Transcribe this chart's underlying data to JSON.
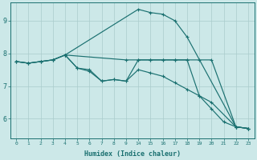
{
  "xlabel": "Humidex (Indice chaleur)",
  "bg_color": "#cce8e8",
  "grid_color_major": "#aacccc",
  "grid_color_minor": "#ddeaea",
  "line_color": "#1a7070",
  "xtick_labels": [
    "0",
    "1",
    "2",
    "3",
    "4",
    "5",
    "6",
    "7",
    "8",
    "9",
    "14",
    "15",
    "16",
    "17",
    "18",
    "19",
    "20",
    "21",
    "22",
    "23"
  ],
  "ylim": [
    5.4,
    9.55
  ],
  "yticks": [
    6,
    7,
    8,
    9
  ],
  "line_A_x": [
    0,
    1,
    2,
    3,
    4,
    14,
    15,
    16,
    17,
    18,
    22,
    23
  ],
  "line_A_y": [
    7.75,
    7.7,
    7.75,
    7.8,
    7.95,
    9.35,
    9.25,
    9.2,
    9.0,
    8.5,
    5.75,
    5.7
  ],
  "line_B_x": [
    0,
    1,
    2,
    3,
    4,
    9,
    14,
    15,
    16,
    17,
    18,
    19,
    20,
    22,
    23
  ],
  "line_B_y": [
    7.75,
    7.7,
    7.75,
    7.8,
    7.95,
    7.8,
    7.8,
    7.8,
    7.8,
    7.8,
    7.8,
    7.8,
    7.8,
    5.75,
    5.7
  ],
  "line_C_x": [
    0,
    1,
    2,
    3,
    4,
    5,
    6,
    7,
    8,
    9,
    14,
    15,
    16,
    17,
    18,
    19,
    20,
    22,
    23
  ],
  "line_C_y": [
    7.75,
    7.7,
    7.75,
    7.8,
    7.95,
    7.55,
    7.45,
    7.15,
    7.2,
    7.15,
    7.5,
    7.4,
    7.3,
    7.1,
    6.9,
    6.7,
    6.5,
    5.75,
    5.7
  ],
  "line_D_x": [
    4,
    5,
    6,
    7,
    8,
    9,
    14,
    15,
    16,
    17,
    18,
    19,
    20,
    21,
    22,
    23
  ],
  "line_D_y": [
    7.95,
    7.55,
    7.5,
    7.15,
    7.2,
    7.15,
    7.8,
    7.8,
    7.8,
    7.8,
    7.8,
    6.7,
    6.3,
    5.9,
    5.75,
    5.7
  ]
}
